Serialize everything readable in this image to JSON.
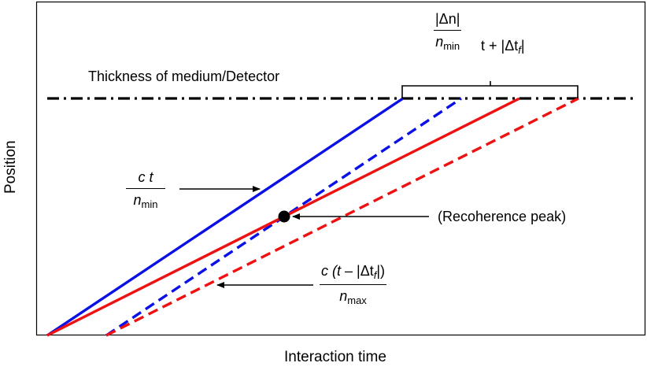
{
  "diagram": {
    "y_axis_label": "Position",
    "x_axis_label": "Interaction time",
    "detector_label": "Thickness of medium/Detector",
    "recoherence_label": "(Recoherence peak)",
    "bracket_expr": {
      "num": "|Δn|",
      "den_var": "n",
      "den_sub": "min",
      "tail_a": "t + |Δt",
      "tail_sub": "f",
      "tail_b": "|"
    },
    "fast_expr": {
      "num": "c t",
      "den_var": "n",
      "den_sub": "min"
    },
    "slow_expr": {
      "num_a": "c (",
      "num_t": "t",
      "num_b": " – |Δt",
      "num_sub": "f",
      "num_c": "|)",
      "den_var": "n",
      "den_sub": "max"
    },
    "colors": {
      "fast": "#0a10e6",
      "slow": "#ee1111",
      "detector": "#000000"
    }
  }
}
